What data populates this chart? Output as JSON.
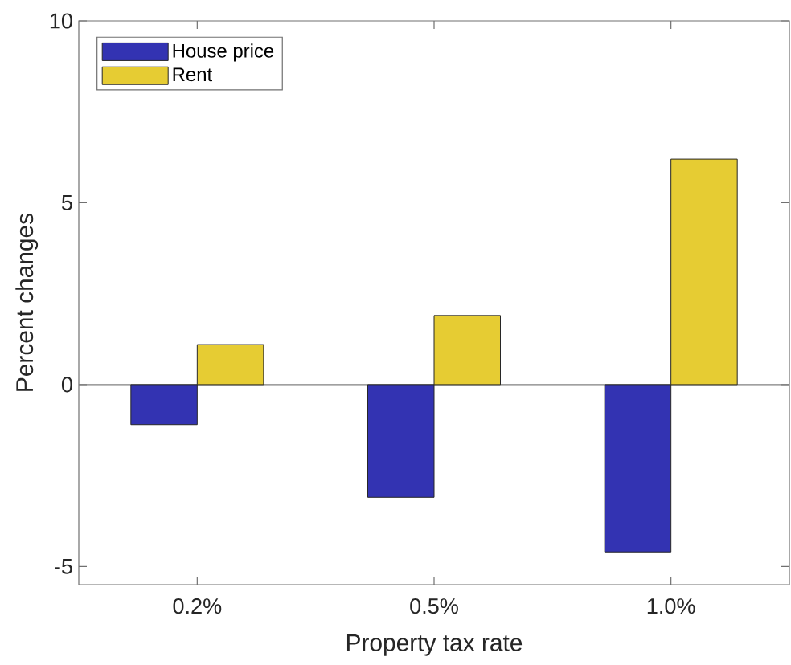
{
  "chart_data": {
    "type": "bar",
    "xlabel": "Property tax rate",
    "ylabel": "Percent changes",
    "categories": [
      "0.2%",
      "0.5%",
      "1.0%"
    ],
    "series": [
      {
        "name": "House price",
        "color": "#3333b2",
        "values": [
          -1.1,
          -3.1,
          -4.6
        ]
      },
      {
        "name": "Rent",
        "color": "#e6cc33",
        "values": [
          1.1,
          1.9,
          6.2
        ]
      }
    ],
    "ylim": [
      -5.5,
      10
    ],
    "yticks": [
      -5,
      0,
      5,
      10
    ],
    "legend": "top left",
    "ref_lines": [
      {
        "axis": "y",
        "value": 0,
        "color": "#808080"
      }
    ]
  }
}
